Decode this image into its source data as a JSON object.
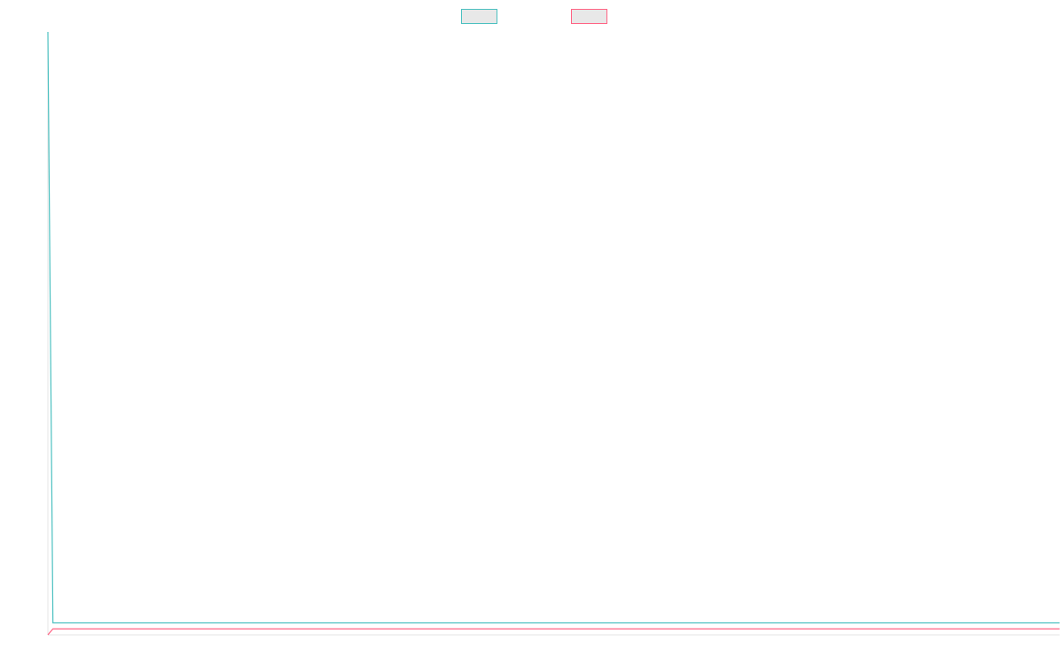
{
  "chart_data": {
    "type": "line",
    "legend": {
      "placement": "top-center",
      "entries": [
        {
          "name": "",
          "color": "#4bc0c0"
        },
        {
          "name": "",
          "color": "#ff6384"
        }
      ]
    },
    "x": [
      0,
      1,
      2
    ],
    "series": [
      {
        "name": "",
        "color": "#4bc0c0",
        "values": [
          100,
          1,
          1
        ]
      },
      {
        "name": "",
        "color": "#ff6384",
        "values": [
          -1,
          0,
          0
        ]
      }
    ],
    "ylim": [
      -1,
      100
    ],
    "xlim": [
      0,
      200
    ],
    "grid": false,
    "title": "",
    "xlabel": "",
    "ylabel": ""
  }
}
